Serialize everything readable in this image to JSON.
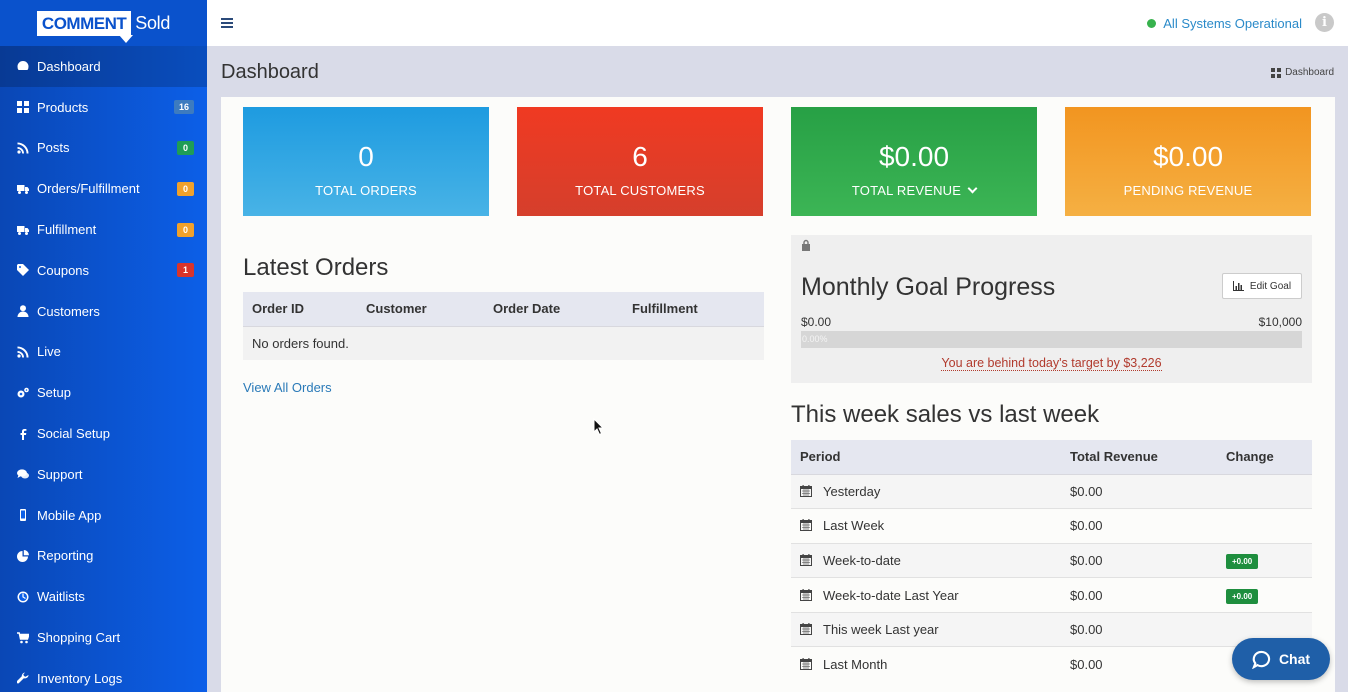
{
  "brand": {
    "logo_part1": "COMMENT",
    "logo_part2": "Sold"
  },
  "sidebar": {
    "items": [
      {
        "label": "Dashboard",
        "icon": "dashboard-icon",
        "badge": null,
        "active": true
      },
      {
        "label": "Products",
        "icon": "grid-icon",
        "badge": "16",
        "badge_color": "#3d7bbf"
      },
      {
        "label": "Posts",
        "icon": "rss-icon",
        "badge": "0",
        "badge_color": "#1f9d55"
      },
      {
        "label": "Orders/Fulfillment",
        "icon": "truck-icon",
        "badge": "0",
        "badge_color": "#f0a12b"
      },
      {
        "label": "Fulfillment",
        "icon": "truck-icon",
        "badge": "0",
        "badge_color": "#f0a12b"
      },
      {
        "label": "Coupons",
        "icon": "tag-icon",
        "badge": "1",
        "badge_color": "#d9342b"
      },
      {
        "label": "Customers",
        "icon": "user-icon",
        "badge": null
      },
      {
        "label": "Live",
        "icon": "rss-icon",
        "badge": null
      },
      {
        "label": "Setup",
        "icon": "gears-icon",
        "badge": null
      },
      {
        "label": "Social Setup",
        "icon": "facebook-icon",
        "badge": null
      },
      {
        "label": "Support",
        "icon": "comments-icon",
        "badge": null
      },
      {
        "label": "Mobile App",
        "icon": "mobile-icon",
        "badge": null
      },
      {
        "label": "Reporting",
        "icon": "pie-chart-icon",
        "badge": null
      },
      {
        "label": "Waitlists",
        "icon": "clock-icon",
        "badge": null
      },
      {
        "label": "Shopping Cart",
        "icon": "cart-icon",
        "badge": null
      },
      {
        "label": "Inventory Logs",
        "icon": "wrench-icon",
        "badge": null
      }
    ]
  },
  "topbar": {
    "status_text": "All Systems Operational",
    "status_color": "#37b24d"
  },
  "header": {
    "title": "Dashboard",
    "breadcrumb": "Dashboard"
  },
  "stats": [
    {
      "value": "0",
      "label": "TOTAL ORDERS",
      "color": "#1e9be0"
    },
    {
      "value": "6",
      "label": "TOTAL CUSTOMERS",
      "color": "#f03a22"
    },
    {
      "value": "$0.00",
      "label": "TOTAL REVENUE",
      "color": "#27a045"
    },
    {
      "value": "$0.00",
      "label": "PENDING REVENUE",
      "color": "#f29520"
    }
  ],
  "latest_orders": {
    "title": "Latest Orders",
    "columns": [
      "Order ID",
      "Customer",
      "Order Date",
      "Fulfillment"
    ],
    "empty_text": "No orders found.",
    "view_all": "View All Orders"
  },
  "goal": {
    "title": "Monthly Goal Progress",
    "edit_label": "Edit Goal",
    "min": "$0.00",
    "max": "$10,000",
    "progress_text": "0.00%",
    "progress": 0,
    "behind_text": "You are behind today's target by $3,226"
  },
  "sales": {
    "title": "This week sales vs last week",
    "columns": [
      "Period",
      "Total Revenue",
      "Change"
    ],
    "rows": [
      {
        "period": "Yesterday",
        "revenue": "$0.00",
        "change": ""
      },
      {
        "period": "Last Week",
        "revenue": "$0.00",
        "change": ""
      },
      {
        "period": "Week-to-date",
        "revenue": "$0.00",
        "change": "+0.00"
      },
      {
        "period": "Week-to-date Last Year",
        "revenue": "$0.00",
        "change": "+0.00"
      },
      {
        "period": "This week Last year",
        "revenue": "$0.00",
        "change": ""
      },
      {
        "period": "Last Month",
        "revenue": "$0.00",
        "change": ""
      }
    ]
  },
  "chat": {
    "label": "Chat"
  }
}
